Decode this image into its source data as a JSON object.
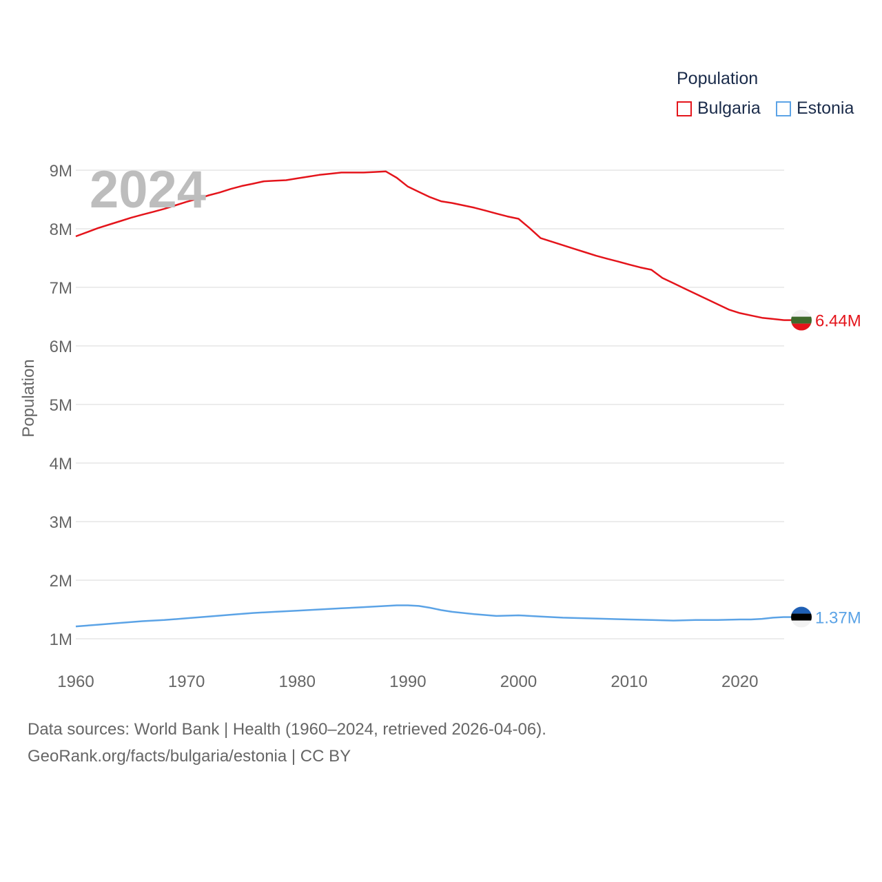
{
  "legend": {
    "title": "Population",
    "items": [
      {
        "label": "Bulgaria",
        "color": "#e4141b"
      },
      {
        "label": "Estonia",
        "color": "#5ba3e6"
      }
    ]
  },
  "overlay_year": "2024",
  "source": {
    "line1": "Data sources: World Bank | Health (1960–2024, retrieved 2026-04-06).",
    "line2": "GeoRank.org/facts/bulgaria/estonia | CC BY"
  },
  "chart_data": {
    "type": "line",
    "title": "Population",
    "xlabel": "",
    "ylabel": "Population",
    "xlim": [
      1960,
      2024
    ],
    "ylim": [
      1000000,
      9000000
    ],
    "x_ticks": [
      1960,
      1970,
      1980,
      1990,
      2000,
      2010,
      2020
    ],
    "y_ticks": [
      {
        "value": 1000000,
        "label": "1M"
      },
      {
        "value": 2000000,
        "label": "2M"
      },
      {
        "value": 3000000,
        "label": "3M"
      },
      {
        "value": 4000000,
        "label": "4M"
      },
      {
        "value": 5000000,
        "label": "5M"
      },
      {
        "value": 6000000,
        "label": "6M"
      },
      {
        "value": 7000000,
        "label": "7M"
      },
      {
        "value": 8000000,
        "label": "8M"
      },
      {
        "value": 9000000,
        "label": "9M"
      }
    ],
    "grid": true,
    "series": [
      {
        "name": "Bulgaria",
        "color": "#e4141b",
        "end_label": "6.44M",
        "x": [
          1960,
          1961,
          1962,
          1963,
          1964,
          1965,
          1966,
          1967,
          1968,
          1969,
          1970,
          1971,
          1972,
          1973,
          1974,
          1975,
          1976,
          1977,
          1978,
          1979,
          1980,
          1981,
          1982,
          1983,
          1984,
          1985,
          1986,
          1987,
          1988,
          1989,
          1990,
          1991,
          1992,
          1993,
          1994,
          1995,
          1996,
          1997,
          1998,
          1999,
          2000,
          2001,
          2002,
          2003,
          2004,
          2005,
          2006,
          2007,
          2008,
          2009,
          2010,
          2011,
          2012,
          2013,
          2014,
          2015,
          2016,
          2017,
          2018,
          2019,
          2020,
          2021,
          2022,
          2023,
          2024
        ],
        "values": [
          7870000,
          7940000,
          8010000,
          8070000,
          8130000,
          8190000,
          8240000,
          8290000,
          8340000,
          8400000,
          8460000,
          8510000,
          8570000,
          8620000,
          8680000,
          8730000,
          8770000,
          8810000,
          8820000,
          8830000,
          8860000,
          8890000,
          8920000,
          8940000,
          8960000,
          8960000,
          8960000,
          8970000,
          8980000,
          8870000,
          8720000,
          8630000,
          8540000,
          8470000,
          8440000,
          8400000,
          8360000,
          8310000,
          8260000,
          8210000,
          8170000,
          8010000,
          7840000,
          7780000,
          7720000,
          7660000,
          7600000,
          7540000,
          7490000,
          7440000,
          7390000,
          7340000,
          7300000,
          7160000,
          7070000,
          6980000,
          6890000,
          6800000,
          6710000,
          6620000,
          6560000,
          6520000,
          6480000,
          6460000,
          6440000
        ]
      },
      {
        "name": "Estonia",
        "color": "#5ba3e6",
        "end_label": "1.37M",
        "x": [
          1960,
          1962,
          1964,
          1966,
          1968,
          1970,
          1972,
          1974,
          1976,
          1978,
          1980,
          1982,
          1984,
          1986,
          1988,
          1989,
          1990,
          1991,
          1992,
          1993,
          1994,
          1996,
          1998,
          2000,
          2002,
          2004,
          2006,
          2008,
          2010,
          2012,
          2014,
          2016,
          2018,
          2020,
          2021,
          2022,
          2023,
          2024
        ],
        "values": [
          1210000,
          1240000,
          1270000,
          1300000,
          1320000,
          1350000,
          1380000,
          1410000,
          1440000,
          1460000,
          1480000,
          1500000,
          1520000,
          1540000,
          1560000,
          1570000,
          1570000,
          1560000,
          1530000,
          1490000,
          1460000,
          1420000,
          1390000,
          1400000,
          1380000,
          1360000,
          1350000,
          1340000,
          1330000,
          1320000,
          1310000,
          1320000,
          1320000,
          1330000,
          1330000,
          1340000,
          1360000,
          1370000
        ]
      }
    ]
  }
}
